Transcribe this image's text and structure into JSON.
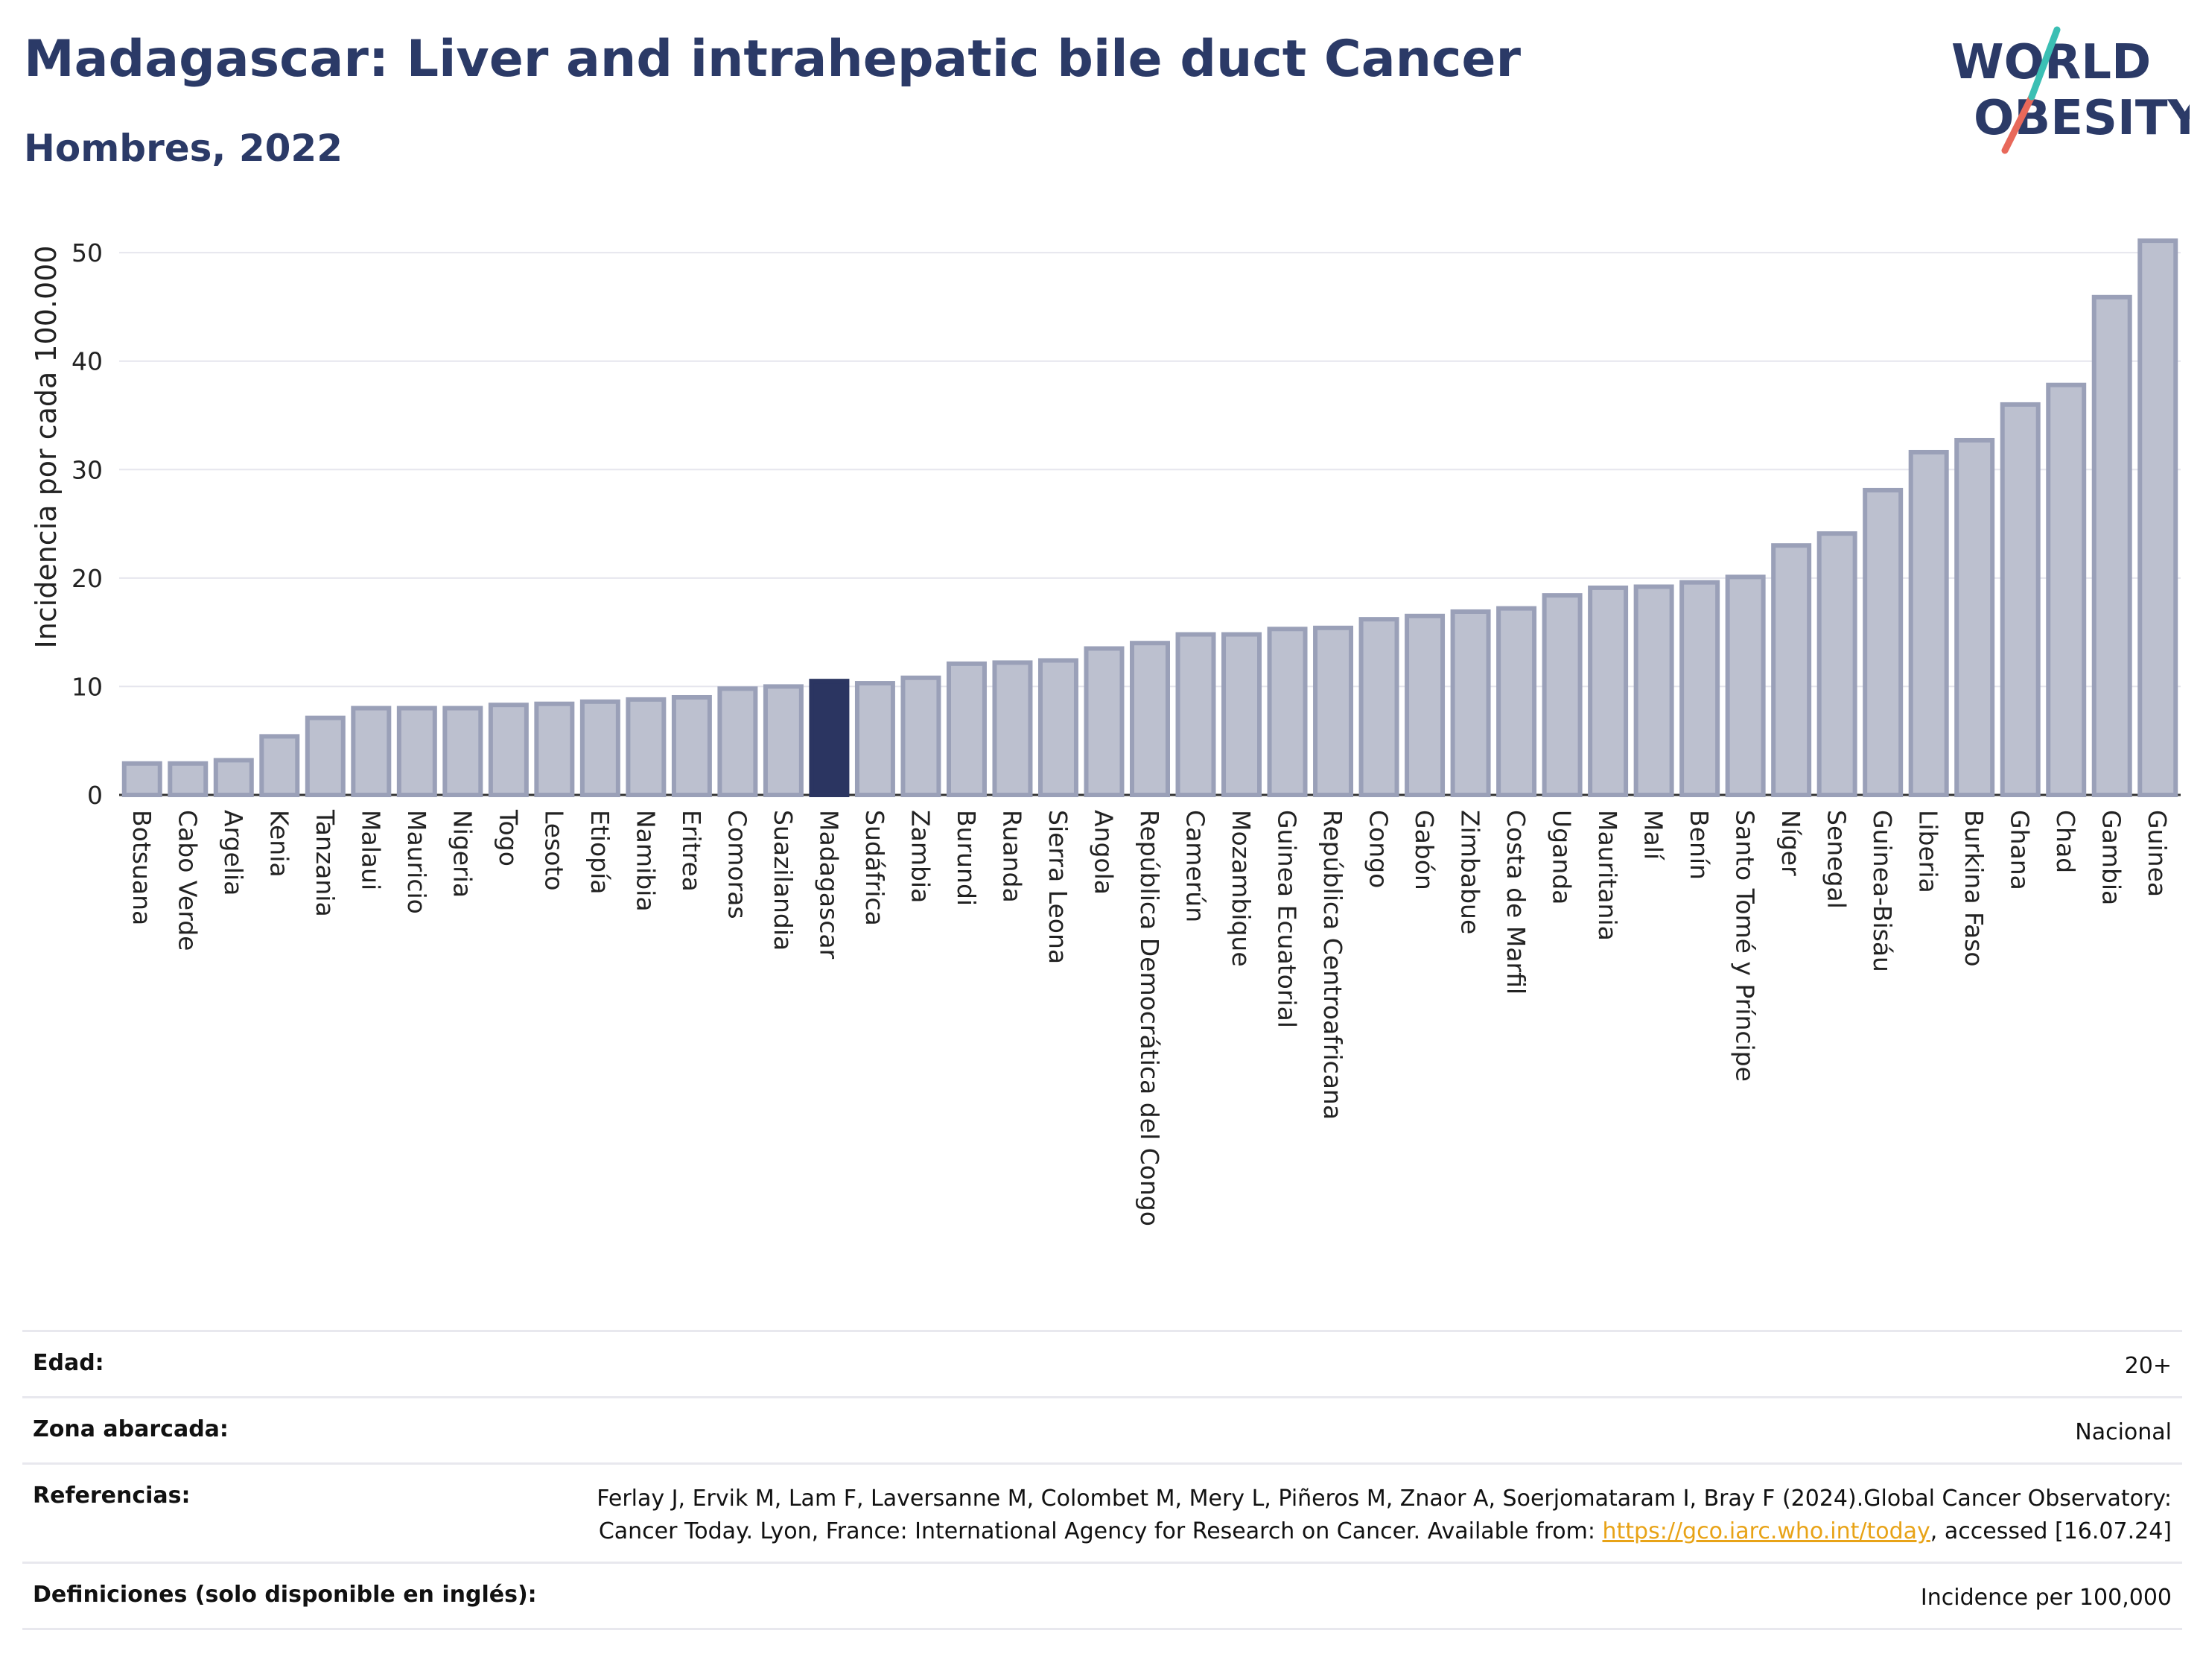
{
  "header": {
    "title": "Madagascar: Liver and intrahepatic bile duct Cancer",
    "subtitle": "Hombres, 2022"
  },
  "logo": {
    "line1": "WORLD",
    "line2": "OBESITY"
  },
  "colors": {
    "bar": "#bcc0cf",
    "bar_stroke": "#9aa0b8",
    "highlight": "#2b3561",
    "title": "#2b3a67"
  },
  "chart_data": {
    "type": "bar",
    "ylabel": "Incidencia por cada 100.000",
    "ylim": [
      0,
      52
    ],
    "yticks": [
      0,
      10,
      20,
      30,
      40,
      50
    ],
    "grid": true,
    "highlight": "Madagascar",
    "categories": [
      "Botsuana",
      "Cabo Verde",
      "Argelia",
      "Kenia",
      "Tanzania",
      "Malaui",
      "Mauricio",
      "Nigeria",
      "Togo",
      "Lesoto",
      "Etiopía",
      "Namibia",
      "Eritrea",
      "Comoras",
      "Suazilandia",
      "Madagascar",
      "Sudáfrica",
      "Zambia",
      "Burundi",
      "Ruanda",
      "Sierra Leona",
      "Angola",
      "República Democrática del Congo",
      "Camerún",
      "Mozambique",
      "Guinea Ecuatorial",
      "República Centroafricana",
      "Congo",
      "Gabón",
      "Zimbabue",
      "Costa de Marfil",
      "Uganda",
      "Mauritania",
      "Malí",
      "Benín",
      "Santo Tomé y Príncipe",
      "Níger",
      "Senegal",
      "Guinea-Bisáu",
      "Liberia",
      "Burkina Faso",
      "Ghana",
      "Chad",
      "Gambia",
      "Guinea"
    ],
    "values": [
      2.9,
      2.9,
      3.2,
      5.4,
      7.1,
      8.0,
      8.0,
      8.0,
      8.3,
      8.4,
      8.6,
      8.8,
      9.0,
      9.8,
      10.0,
      10.5,
      10.3,
      10.8,
      12.1,
      12.2,
      12.4,
      13.5,
      14.0,
      14.8,
      14.8,
      15.3,
      15.4,
      16.2,
      16.5,
      16.9,
      17.2,
      18.4,
      19.1,
      19.2,
      19.6,
      20.1,
      23.0,
      24.1,
      28.1,
      31.6,
      32.7,
      36.0,
      37.8,
      45.9,
      51.1
    ]
  },
  "info": {
    "age_label": "Edad:",
    "age_value": "20+",
    "zone_label": "Zona abarcada:",
    "zone_value": "Nacional",
    "ref_label": "Referencias:",
    "ref_text1": "Ferlay J, Ervik M, Lam F, Laversanne M, Colombet M, Mery L, Piñeros M, Znaor A, Soerjomataram I, Bray F (2024).Global Cancer Observatory: Cancer Today. Lyon, France: International Agency for Research on Cancer. Available from: ",
    "ref_link": "https://gco.iarc.who.int/today",
    "ref_text2": ", accessed [16.07.24]",
    "def_label": "Definiciones (solo disponible en inglés):",
    "def_value": "Incidence per 100,000"
  }
}
